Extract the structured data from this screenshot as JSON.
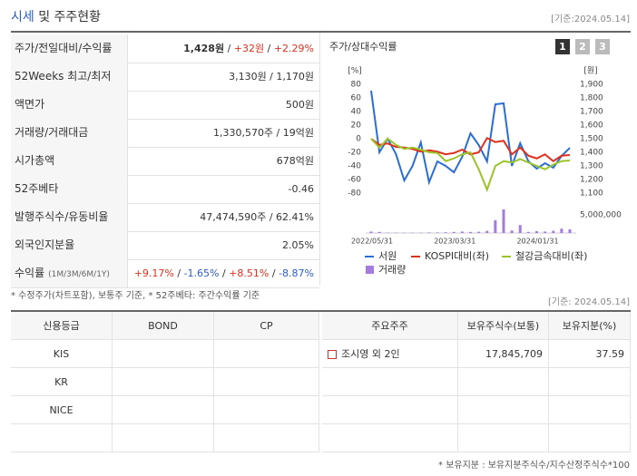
{
  "header": {
    "title": [
      {
        "text": "시세",
        "color": "#2a5cc8"
      },
      {
        "text": " 및 주주현황"
      }
    ],
    "date": "[기준:2024.05.14]"
  },
  "price_table": {
    "rows": [
      {
        "label": "주가/전일대비/수익률",
        "parts": [
          {
            "text": "1,428원",
            "bold": true
          },
          {
            "text": " / "
          },
          {
            "text": "+32원",
            "color": "#e0301e"
          },
          {
            "text": " / "
          },
          {
            "text": "+2.29%",
            "color": "#e0301e"
          }
        ]
      },
      {
        "label": "52Weeks 최고/최저",
        "parts": [
          {
            "text": "3,130원 / 1,170원"
          }
        ]
      },
      {
        "label": "액면가",
        "parts": [
          {
            "text": "500원"
          }
        ]
      },
      {
        "label": "거래량/거래대금",
        "parts": [
          {
            "text": "1,330,570주 / 19억원"
          }
        ]
      },
      {
        "label": "시가총액",
        "parts": [
          {
            "text": "678억원"
          }
        ]
      },
      {
        "label": "52주베타",
        "parts": [
          {
            "text": "-0.46"
          }
        ]
      },
      {
        "label": "발행주식수/유동비율",
        "parts": [
          {
            "text": "47,474,590주 / 62.41%"
          }
        ]
      },
      {
        "label": "외국인지분율",
        "parts": [
          {
            "text": "2.05%"
          }
        ]
      },
      {
        "label": "수익률",
        "sublabel": "(1M/3M/6M/1Y)",
        "parts": [
          {
            "text": "+9.17%",
            "color": "#e0301e"
          },
          {
            "text": " / "
          },
          {
            "text": "-1.65%",
            "color": "#2a5cc8"
          },
          {
            "text": " / "
          },
          {
            "text": "+8.51%",
            "color": "#e0301e"
          },
          {
            "text": " / "
          },
          {
            "text": "-8.87%",
            "color": "#2a5cc8"
          }
        ]
      }
    ],
    "note": "* 수정주가(차트포함), 보통주 기준, * 52주베타: 주간수익률 기준"
  },
  "chart_data": {
    "type": "line",
    "title": "주가/상대수익률",
    "buttons": [
      "1",
      "2",
      "3"
    ],
    "y_unit": "[%]",
    "y2_unit": "[원]",
    "categories": [
      "2022/05/31",
      null,
      null,
      null,
      null,
      null,
      null,
      null,
      null,
      null,
      "2023/03/31",
      null,
      null,
      null,
      null,
      null,
      null,
      null,
      null,
      null,
      "2024/01/31",
      null,
      null,
      null,
      null
    ],
    "ylim": [
      -80,
      80
    ],
    "yticks": [
      80,
      60,
      40,
      20,
      0,
      -20,
      -40,
      -60,
      -80
    ],
    "y2lim": [
      1100,
      1900
    ],
    "y2ticks": [
      {
        "value": 1900,
        "label": "1,900"
      },
      {
        "value": 1800,
        "label": "1,800"
      },
      {
        "value": 1700,
        "label": "1,700"
      },
      {
        "value": 1600,
        "label": "1,600"
      },
      {
        "value": 1500,
        "label": "1,500"
      },
      {
        "value": 1400,
        "label": "1,400"
      },
      {
        "value": 1300,
        "label": "1,300"
      },
      {
        "value": 1200,
        "label": "1,200"
      },
      {
        "value": 1100,
        "label": "1,100"
      }
    ],
    "volume_lim": [
      0,
      8000000
    ],
    "volume_ticks": [
      {
        "value": 5000000,
        "label": "5,000,000"
      }
    ],
    "series": [
      {
        "name": "서원",
        "color": "#2a6ed1",
        "axis": "y2",
        "values": [
          1853,
          1400,
          1500,
          1387,
          1193,
          1300,
          1473,
          1180,
          1333,
          1300,
          1253,
          1367,
          1540,
          1453,
          1333,
          1753,
          1760,
          1300,
          1467,
          1333,
          1280,
          1320,
          1287,
          1373,
          1433
        ]
      },
      {
        "name": "KOSPI대비(좌)",
        "color": "#e0301e",
        "values": [
          0,
          -9,
          -7,
          -12,
          -13,
          -15,
          -19,
          -17,
          -19,
          -23,
          -21,
          -16,
          -23,
          -20,
          1,
          -5,
          -3,
          -23,
          -13,
          -25,
          -29,
          -23,
          -33,
          -25,
          -24
        ]
      },
      {
        "name": "철강금속대비(좌)",
        "color": "#9ac427",
        "values": [
          0,
          -13,
          0,
          -9,
          -15,
          -13,
          -16,
          -20,
          -21,
          -33,
          -29,
          -23,
          -20,
          -45,
          -75,
          -40,
          -33,
          -35,
          -30,
          -35,
          -40,
          -45,
          -38,
          -33,
          -32
        ]
      },
      {
        "name": "거래량",
        "color": "#a57be0",
        "type": "bar",
        "values": [
          400000,
          300000,
          100000,
          100000,
          100000,
          100000,
          100000,
          150000,
          150000,
          200000,
          300000,
          400000,
          300000,
          350000,
          600000,
          3500000,
          6500000,
          700000,
          2200000,
          300000,
          500000,
          400000,
          600000,
          1200000,
          1000000
        ]
      }
    ]
  },
  "credit_table": {
    "headers": [
      "신용등급",
      "BOND",
      "CP"
    ],
    "rows": [
      [
        "KIS"
      ],
      [
        "KR"
      ],
      [
        "NICE"
      ]
    ]
  },
  "holder_table": {
    "date": "[기준: 2024.05.14]",
    "headers": [
      "주요주주",
      "보유주식수(보통)",
      "보유지분(%)"
    ],
    "rows": [
      [
        "조시영 외 2인",
        "17,845,709",
        "37.59"
      ]
    ],
    "note": "* 보유지분 : 보유지분주식수/지수산정주식수*100"
  }
}
